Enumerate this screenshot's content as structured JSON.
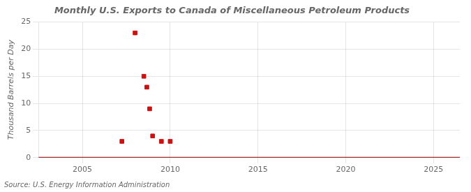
{
  "chart_data": {
    "type": "scatter",
    "title": "Monthly U.S. Exports to Canada of Miscellaneous Petroleum Products",
    "ylabel": "Thousand Barrels per Day",
    "source": "Source: U.S. Energy Information Administration",
    "series": [
      {
        "type": "line",
        "color": "#8B0000",
        "line_style": "solid",
        "x": [
          2002.5,
          2026.5
        ],
        "values": [
          0,
          0
        ]
      },
      {
        "type": "scatter",
        "color": "#CC1111",
        "marker": "square",
        "x": [
          2007.25,
          2008.0,
          2008.5,
          2008.67,
          2008.83,
          2009.0,
          2009.5,
          2010.0
        ],
        "values": [
          3.0,
          23.0,
          15.0,
          13.0,
          9.0,
          4.0,
          3.0,
          3.0
        ]
      }
    ],
    "xlim": [
      2002.5,
      2026.5
    ],
    "ylim": [
      0,
      25
    ],
    "xticks": [
      2005,
      2010,
      2015,
      2020,
      2025
    ],
    "yticks": [
      0,
      5,
      10,
      15,
      20,
      25
    ],
    "grid": true
  }
}
